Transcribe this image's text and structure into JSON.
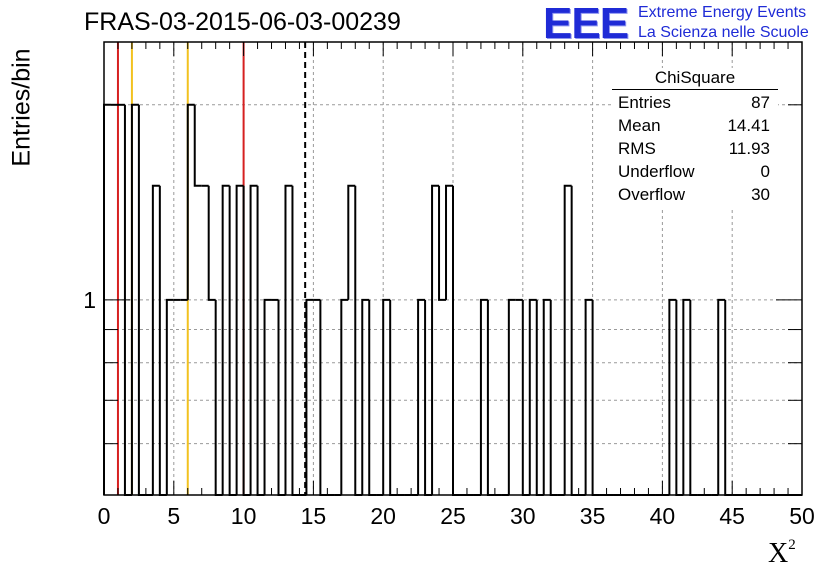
{
  "title": "FRAS-03-2015-06-03-00239",
  "logo": {
    "mark": "EEE",
    "line1": "Extreme Energy Events",
    "line2": "La Scienza nelle Scuole",
    "color": "#1f2bd6"
  },
  "stats": {
    "name": "ChiSquare",
    "rows": [
      {
        "label": "Entries",
        "value": "87"
      },
      {
        "label": "Mean",
        "value": "14.41"
      },
      {
        "label": "RMS",
        "value": "11.93"
      },
      {
        "label": "Underflow",
        "value": "0"
      },
      {
        "label": "Overflow",
        "value": "30"
      }
    ]
  },
  "chart_data": {
    "type": "histogram",
    "xlabel": "X",
    "xlabel_superscript": "2",
    "ylabel": "Entries/bin",
    "xlim": [
      0,
      50
    ],
    "ylim": [
      0.5,
      2.5
    ],
    "yscale": "log",
    "bin_width": 0.5,
    "grid": true,
    "x_ticks": [
      0,
      5,
      10,
      15,
      20,
      25,
      30,
      35,
      40,
      45,
      50
    ],
    "y_tick_labels": [
      {
        "value": 1,
        "label": "1"
      }
    ],
    "bins": [
      {
        "x": 0.25,
        "y": 2
      },
      {
        "x": 0.75,
        "y": 2
      },
      {
        "x": 1.25,
        "y": 2
      },
      {
        "x": 1.75,
        "y": 0
      },
      {
        "x": 2.25,
        "y": 2
      },
      {
        "x": 2.75,
        "y": 0
      },
      {
        "x": 3.25,
        "y": 0
      },
      {
        "x": 3.75,
        "y": 1.5
      },
      {
        "x": 4.25,
        "y": 0
      },
      {
        "x": 4.75,
        "y": 1
      },
      {
        "x": 5.25,
        "y": 1
      },
      {
        "x": 5.75,
        "y": 1
      },
      {
        "x": 6.25,
        "y": 2
      },
      {
        "x": 6.75,
        "y": 1.5
      },
      {
        "x": 7.25,
        "y": 1.5
      },
      {
        "x": 7.75,
        "y": 1
      },
      {
        "x": 8.25,
        "y": 0
      },
      {
        "x": 8.75,
        "y": 1.5
      },
      {
        "x": 9.25,
        "y": 0
      },
      {
        "x": 9.75,
        "y": 1.5
      },
      {
        "x": 10.25,
        "y": 0
      },
      {
        "x": 10.75,
        "y": 1.5
      },
      {
        "x": 11.25,
        "y": 0
      },
      {
        "x": 11.75,
        "y": 1
      },
      {
        "x": 12.25,
        "y": 1
      },
      {
        "x": 12.75,
        "y": 0
      },
      {
        "x": 13.25,
        "y": 1.5
      },
      {
        "x": 13.75,
        "y": 0
      },
      {
        "x": 14.25,
        "y": 0
      },
      {
        "x": 14.75,
        "y": 1
      },
      {
        "x": 15.25,
        "y": 1
      },
      {
        "x": 15.75,
        "y": 0
      },
      {
        "x": 16.25,
        "y": 0
      },
      {
        "x": 16.75,
        "y": 0
      },
      {
        "x": 17.25,
        "y": 1
      },
      {
        "x": 17.75,
        "y": 1.5
      },
      {
        "x": 18.25,
        "y": 0
      },
      {
        "x": 18.75,
        "y": 1
      },
      {
        "x": 19.25,
        "y": 0
      },
      {
        "x": 19.75,
        "y": 0
      },
      {
        "x": 20.25,
        "y": 1
      },
      {
        "x": 20.75,
        "y": 0
      },
      {
        "x": 21.25,
        "y": 0
      },
      {
        "x": 21.75,
        "y": 0
      },
      {
        "x": 22.25,
        "y": 0
      },
      {
        "x": 22.75,
        "y": 1
      },
      {
        "x": 23.25,
        "y": 0
      },
      {
        "x": 23.75,
        "y": 1.5
      },
      {
        "x": 24.25,
        "y": 1
      },
      {
        "x": 24.75,
        "y": 1.5
      },
      {
        "x": 25.25,
        "y": 0
      },
      {
        "x": 25.75,
        "y": 0
      },
      {
        "x": 26.25,
        "y": 0
      },
      {
        "x": 26.75,
        "y": 0
      },
      {
        "x": 27.25,
        "y": 1
      },
      {
        "x": 27.75,
        "y": 0
      },
      {
        "x": 28.25,
        "y": 0
      },
      {
        "x": 28.75,
        "y": 0
      },
      {
        "x": 29.25,
        "y": 1
      },
      {
        "x": 29.75,
        "y": 1
      },
      {
        "x": 30.25,
        "y": 0
      },
      {
        "x": 30.75,
        "y": 1
      },
      {
        "x": 31.25,
        "y": 0
      },
      {
        "x": 31.75,
        "y": 1
      },
      {
        "x": 32.25,
        "y": 0
      },
      {
        "x": 32.75,
        "y": 0
      },
      {
        "x": 33.25,
        "y": 1.5
      },
      {
        "x": 33.75,
        "y": 0
      },
      {
        "x": 34.25,
        "y": 0
      },
      {
        "x": 34.75,
        "y": 1
      },
      {
        "x": 35.25,
        "y": 0
      },
      {
        "x": 35.75,
        "y": 0
      },
      {
        "x": 36.25,
        "y": 0
      },
      {
        "x": 36.75,
        "y": 0
      },
      {
        "x": 37.25,
        "y": 0
      },
      {
        "x": 37.75,
        "y": 0
      },
      {
        "x": 38.25,
        "y": 0
      },
      {
        "x": 38.75,
        "y": 0
      },
      {
        "x": 39.25,
        "y": 0
      },
      {
        "x": 39.75,
        "y": 0
      },
      {
        "x": 40.25,
        "y": 0
      },
      {
        "x": 40.75,
        "y": 1
      },
      {
        "x": 41.25,
        "y": 0
      },
      {
        "x": 41.75,
        "y": 1
      },
      {
        "x": 42.25,
        "y": 0
      },
      {
        "x": 42.75,
        "y": 0
      },
      {
        "x": 43.25,
        "y": 0
      },
      {
        "x": 43.75,
        "y": 0
      },
      {
        "x": 44.25,
        "y": 1
      },
      {
        "x": 44.75,
        "y": 0
      }
    ],
    "reference_lines": [
      {
        "x": 1.0,
        "color": "#d62020",
        "style": "solid"
      },
      {
        "x": 2.0,
        "color": "#f2c21f",
        "style": "solid"
      },
      {
        "x": 6.0,
        "color": "#f2c21f",
        "style": "solid"
      },
      {
        "x": 10.0,
        "color": "#d62020",
        "style": "solid"
      },
      {
        "x": 14.41,
        "color": "#000000",
        "style": "dashed"
      }
    ]
  }
}
